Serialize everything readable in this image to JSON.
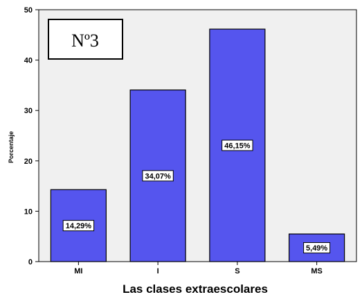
{
  "chart_data": {
    "type": "bar",
    "panel_label": "Nº3",
    "categories": [
      "MI",
      "I",
      "S",
      "MS"
    ],
    "values": [
      14.29,
      34.07,
      46.15,
      5.49
    ],
    "data_labels": [
      "14,29%",
      "34,07%",
      "46,15%",
      "5,49%"
    ],
    "xlabel": "Las clases extraescolares",
    "ylabel": "Porcentaje",
    "ylim": [
      0,
      50
    ],
    "yticks": [
      0,
      10,
      20,
      30,
      40,
      50
    ],
    "grid": false,
    "colors": {
      "bar": "#5555ee",
      "plot_bg": "#f0f0f0",
      "border": "#000000"
    }
  }
}
